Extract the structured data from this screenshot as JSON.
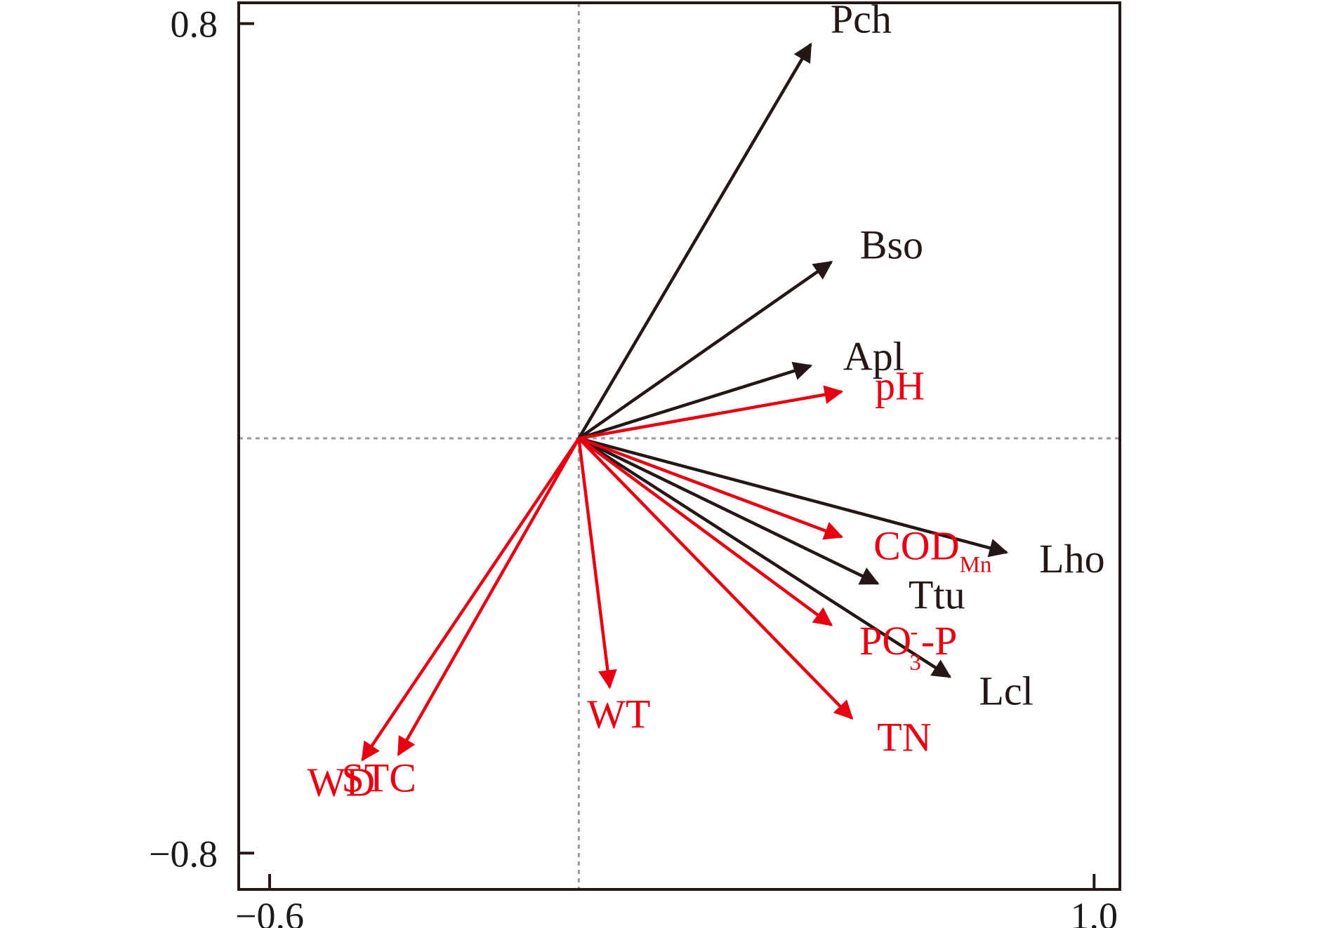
{
  "chart_data": {
    "type": "biplot",
    "title": "",
    "xlabel": "",
    "ylabel": "",
    "xlim": [
      -0.66,
      1.05
    ],
    "ylim": [
      -0.87,
      0.84
    ],
    "x_ticks": [
      {
        "value": -0.6,
        "label": "−0.6"
      },
      {
        "value": 1.0,
        "label": "1.0"
      }
    ],
    "y_ticks": [
      {
        "value": 0.8,
        "label": "0.8"
      },
      {
        "value": -0.8,
        "label": "−0.8"
      }
    ],
    "zero_lines": true,
    "series": [
      {
        "color": "#231815",
        "vectors": [
          {
            "label": "Pch",
            "x": 0.45,
            "y": 0.76
          },
          {
            "label": "Bso",
            "x": 0.49,
            "y": 0.34
          },
          {
            "label": "Apl",
            "x": 0.45,
            "y": 0.14
          },
          {
            "label": "Lho",
            "x": 0.83,
            "y": -0.22
          },
          {
            "label": "Ttu",
            "x": 0.58,
            "y": -0.28
          },
          {
            "label": "Lcl",
            "x": 0.72,
            "y": -0.46
          }
        ]
      },
      {
        "color": "#e60012",
        "vectors": [
          {
            "label": "pH",
            "x": 0.51,
            "y": 0.09
          },
          {
            "label": "COD",
            "sub": "Mn",
            "x": 0.51,
            "y": -0.19
          },
          {
            "label": "PO",
            "sub": "3",
            "sup": "-",
            "suffix": "-P",
            "x": 0.49,
            "y": -0.36
          },
          {
            "label": "TN",
            "x": 0.53,
            "y": -0.54
          },
          {
            "label": "WT",
            "x": 0.06,
            "y": -0.48
          },
          {
            "label": "WD",
            "x": -0.42,
            "y": -0.62
          },
          {
            "label": "STC",
            "x": -0.35,
            "y": -0.61
          }
        ]
      }
    ]
  }
}
